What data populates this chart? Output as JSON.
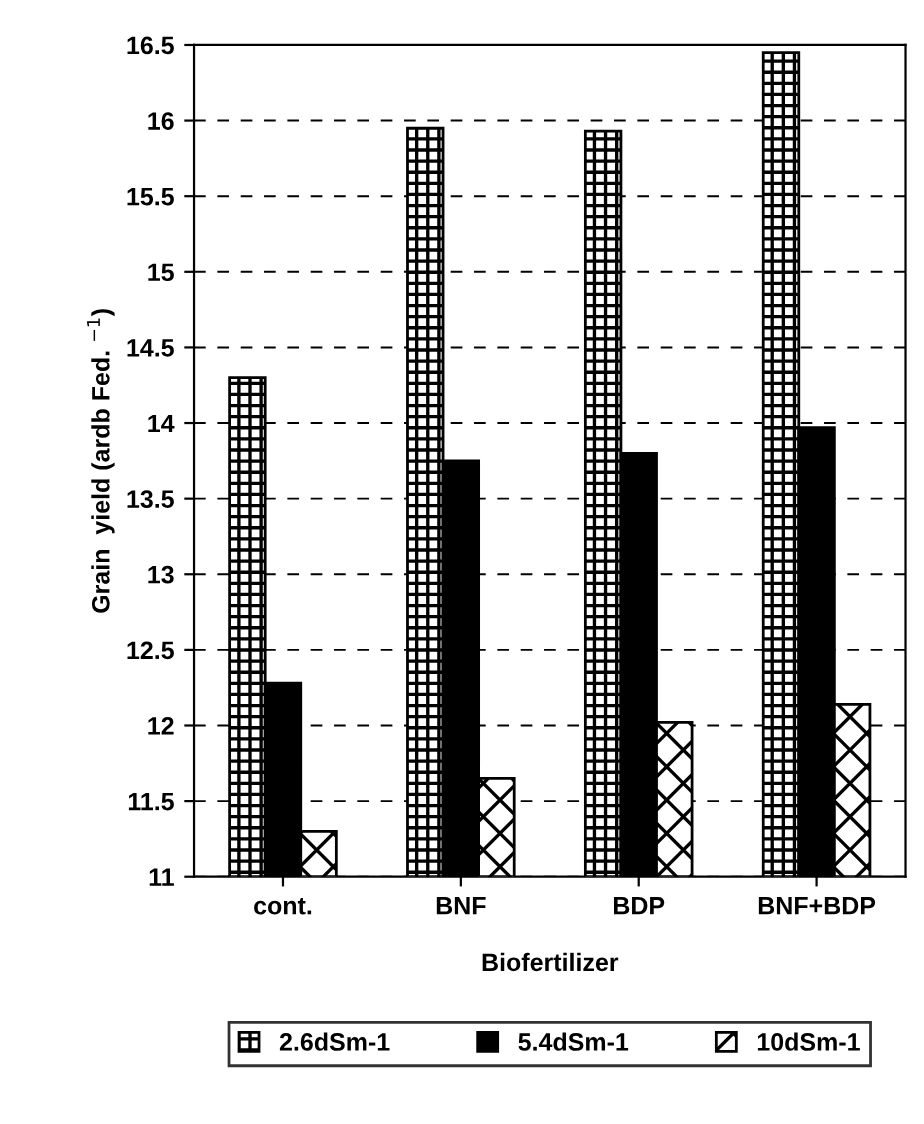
{
  "chart_data": {
    "type": "bar",
    "xlabel": "Biofertilizer",
    "ylabel": "Grain  yield (ardb Fed. $^{−1}$)",
    "categories": [
      "cont.",
      "BNF",
      "BDP",
      "BNF+BDP"
    ],
    "series": [
      {
        "name": "2.6dSm-1",
        "color": "#000000",
        "values": [
          14.3,
          15.95,
          15.93,
          16.45
        ]
      },
      {
        "name": "5.4dSm-1",
        "color": "#000000",
        "values": [
          12.28,
          13.75,
          13.8,
          13.97
        ]
      },
      {
        "name": "10dSm-1",
        "color": "#000000",
        "values": [
          11.3,
          11.65,
          12.02,
          12.14
        ]
      }
    ],
    "ylim": [
      11,
      16.5
    ],
    "yticks": [
      11,
      11.5,
      12,
      12.5,
      13,
      13.5,
      14,
      14.5,
      15,
      15.5,
      16,
      16.5
    ],
    "grid": "y",
    "legend": "bottom"
  }
}
